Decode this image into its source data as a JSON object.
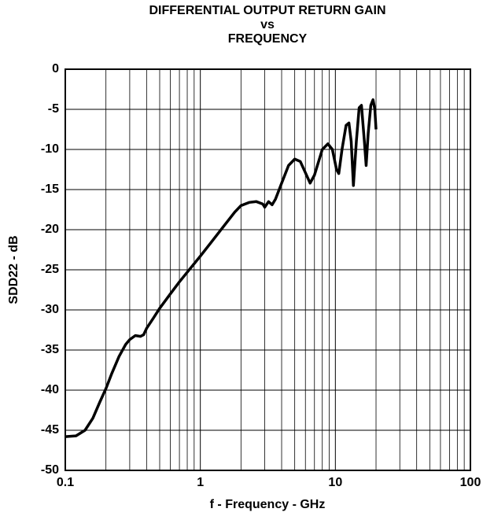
{
  "chart_data": {
    "type": "line",
    "title_lines": [
      "DIFFERENTIAL OUTPUT RETURN GAIN",
      "vs",
      "FREQUENCY"
    ],
    "x_label": "f - Frequency - GHz",
    "y_label": "SDD22 - dB",
    "x_scale": "log",
    "grid": true,
    "xlim": [
      0.1,
      100
    ],
    "ylim": [
      -50,
      0
    ],
    "xticks": [
      0.1,
      1,
      10,
      100
    ],
    "x_minor_ticks": [
      0.2,
      0.3,
      0.4,
      0.5,
      0.6,
      0.7,
      0.8,
      0.9,
      2,
      3,
      4,
      5,
      6,
      7,
      8,
      9,
      20,
      30,
      40,
      50,
      60,
      70,
      80,
      90
    ],
    "yticks": [
      0,
      -5,
      -10,
      -15,
      -20,
      -25,
      -30,
      -35,
      -40,
      -45,
      -50
    ],
    "series": [
      {
        "color": "#000000",
        "x": [
          0.1,
          0.12,
          0.14,
          0.16,
          0.18,
          0.2,
          0.22,
          0.25,
          0.28,
          0.3,
          0.33,
          0.36,
          0.38,
          0.4,
          0.45,
          0.5,
          0.6,
          0.7,
          0.8,
          1.0,
          1.2,
          1.5,
          1.8,
          2.0,
          2.3,
          2.6,
          2.9,
          3.0,
          3.2,
          3.4,
          3.6,
          4.0,
          4.5,
          5.0,
          5.5,
          6.0,
          6.5,
          7.0,
          8.0,
          8.8,
          9.5,
          10.2,
          10.6,
          11.2,
          12,
          12.6,
          13.1,
          13.6,
          14.3,
          15,
          15.6,
          16.4,
          16.9,
          17.5,
          18.3,
          19,
          19.6,
          20
        ],
        "values": [
          -45.8,
          -45.7,
          -45.0,
          -43.5,
          -41.5,
          -39.8,
          -38,
          -35.8,
          -34.3,
          -33.7,
          -33.2,
          -33.3,
          -33.1,
          -32.3,
          -31,
          -29.8,
          -28,
          -26.5,
          -25.3,
          -23.3,
          -21.6,
          -19.5,
          -17.8,
          -17.0,
          -16.6,
          -16.5,
          -16.8,
          -17.2,
          -16.5,
          -16.9,
          -16.2,
          -14.2,
          -12.0,
          -11.2,
          -11.5,
          -12.9,
          -14.2,
          -13.2,
          -10.0,
          -9.3,
          -10,
          -12.5,
          -13.0,
          -10,
          -7,
          -6.7,
          -9,
          -14.5,
          -9,
          -4.8,
          -4.5,
          -9,
          -12,
          -8,
          -4.5,
          -3.8,
          -5,
          -7.5
        ]
      }
    ]
  }
}
